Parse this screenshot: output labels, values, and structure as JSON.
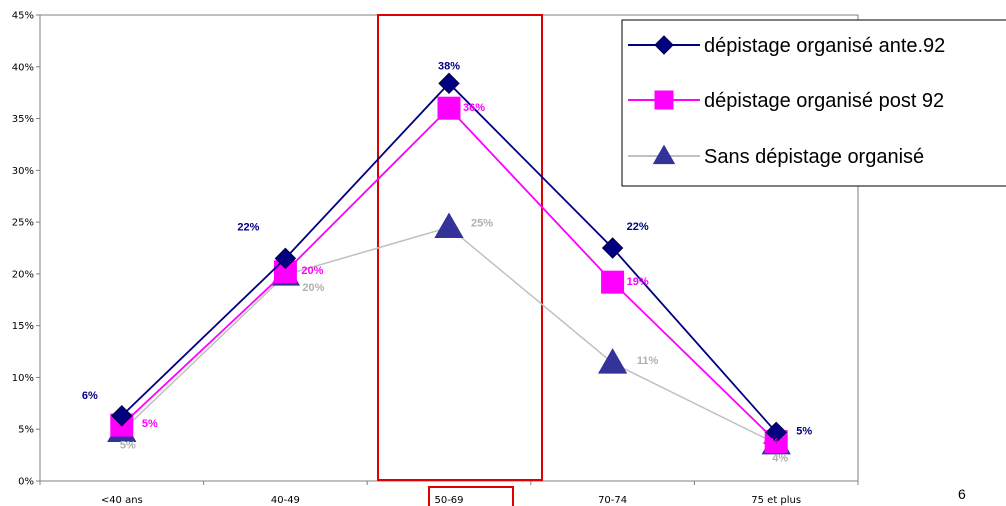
{
  "page_number": "6",
  "chart_data": {
    "type": "line",
    "categories": [
      "<40 ans",
      "40-49",
      "50-69",
      "70-74",
      "75 et plus"
    ],
    "ylim": [
      0,
      45
    ],
    "yticks": [
      "0%",
      "5%",
      "10%",
      "15%",
      "20%",
      "25%",
      "30%",
      "35%",
      "40%",
      "45%"
    ],
    "grid": false,
    "legend_position": "top-right",
    "highlight_category": "50-69",
    "series": [
      {
        "name": "dépistage organisé ante.92",
        "values": [
          6.3,
          21.5,
          38.4,
          22.5,
          4.7
        ],
        "labels": [
          "6%",
          "22%",
          "38%",
          "22%",
          "5%"
        ],
        "color": "#000080",
        "marker": "diamond"
      },
      {
        "name": "dépistage organisé post 92",
        "values": [
          5.4,
          20.2,
          36.0,
          19.2,
          3.8
        ],
        "labels": [
          "5%",
          "20%",
          "36%",
          "19%",
          "4%"
        ],
        "color": "#FF00FF",
        "marker": "square"
      },
      {
        "name": "Sans dépistage organisé",
        "values": [
          4.8,
          19.9,
          24.5,
          11.4,
          3.6
        ],
        "labels": [
          "5%",
          "20%",
          "25%",
          "11%",
          "4%"
        ],
        "color": "#C0C0C0",
        "marker": "triangle",
        "marker_color": "#333399"
      }
    ]
  }
}
